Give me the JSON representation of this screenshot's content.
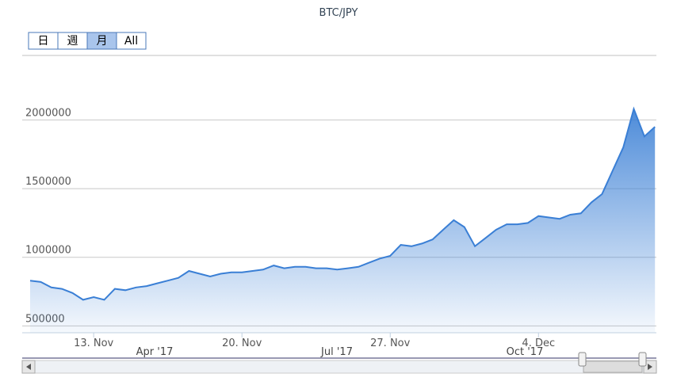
{
  "chart_data": {
    "type": "area",
    "title": "BTC/JPY",
    "range_buttons": [
      "日",
      "週",
      "月",
      "All"
    ],
    "selected_button": 2,
    "categories": [
      null,
      null,
      null,
      null,
      null,
      null,
      "13. Nov",
      null,
      null,
      null,
      null,
      null,
      null,
      null,
      null,
      null,
      null,
      null,
      null,
      null,
      "20. Nov",
      null,
      null,
      null,
      null,
      null,
      null,
      null,
      null,
      null,
      null,
      null,
      null,
      null,
      "27. Nov",
      null,
      null,
      null,
      null,
      null,
      null,
      null,
      null,
      null,
      null,
      null,
      null,
      null,
      "4. Dec",
      null,
      null,
      null,
      null,
      null,
      null,
      null,
      null,
      null,
      null,
      null
    ],
    "series": [
      {
        "name": "BTC/JPY",
        "color": "#3a7fd5",
        "values": [
          830000,
          820000,
          780000,
          770000,
          740000,
          690000,
          710000,
          690000,
          770000,
          760000,
          780000,
          790000,
          810000,
          830000,
          850000,
          900000,
          880000,
          860000,
          880000,
          890000,
          890000,
          900000,
          910000,
          940000,
          920000,
          930000,
          930000,
          920000,
          920000,
          910000,
          920000,
          930000,
          960000,
          990000,
          1010000,
          1090000,
          1080000,
          1100000,
          1130000,
          1200000,
          1270000,
          1220000,
          1080000,
          1140000,
          1200000,
          1240000,
          1240000,
          1250000,
          1300000,
          1290000,
          1280000,
          1310000,
          1320000,
          1400000,
          1460000,
          1630000,
          1800000,
          2080000,
          1880000,
          1950000
        ]
      }
    ],
    "ylim": [
      450000,
      2470000
    ],
    "yticks": [
      500000,
      1000000,
      1500000,
      2000000
    ],
    "grid": true,
    "navigator_labels": [
      "Apr '17",
      "Jul '17",
      "Oct '17"
    ]
  }
}
